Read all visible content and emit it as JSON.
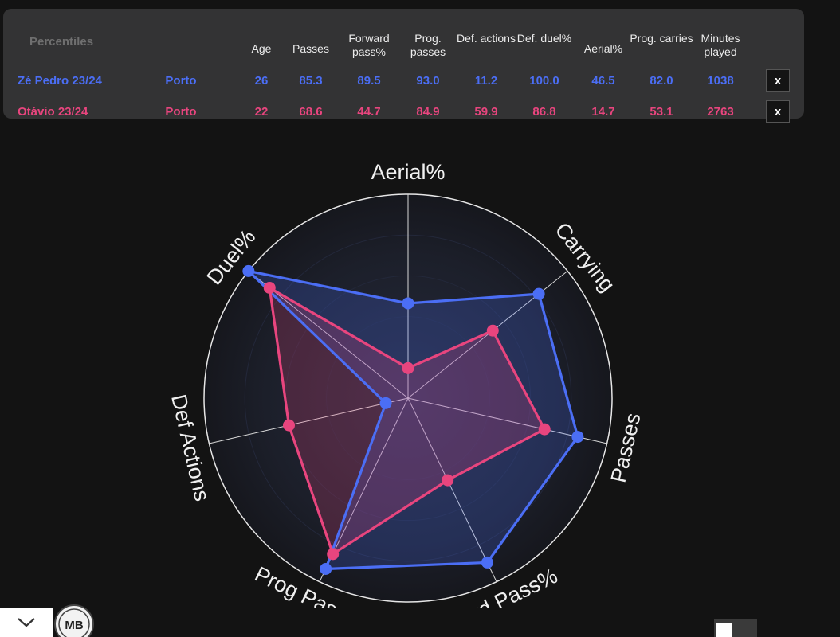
{
  "table": {
    "percentiles_label": "Percentiles",
    "headers": [
      {
        "key": "age",
        "label": "Age"
      },
      {
        "key": "passes",
        "label": "Passes"
      },
      {
        "key": "fwd",
        "label": "Forward pass%"
      },
      {
        "key": "prog",
        "label": "Prog. passes"
      },
      {
        "key": "defact",
        "label": "Def. actions"
      },
      {
        "key": "defduel",
        "label": "Def. duel%"
      },
      {
        "key": "aerial",
        "label": "Aerial%"
      },
      {
        "key": "carries",
        "label": "Prog. carries"
      },
      {
        "key": "minutes",
        "label": "Minutes played"
      }
    ],
    "rows": [
      {
        "name": "Zé Pedro 23/24",
        "team": "Porto",
        "values": [
          "26",
          "85.3",
          "89.5",
          "93.0",
          "11.2",
          "100.0",
          "46.5",
          "82.0",
          "1038"
        ],
        "remove_label": "x"
      },
      {
        "name": "Otávio 23/24",
        "team": "Porto",
        "values": [
          "22",
          "68.6",
          "44.7",
          "84.9",
          "59.9",
          "86.8",
          "14.7",
          "53.1",
          "2763"
        ],
        "remove_label": "x"
      }
    ]
  },
  "logo_text": "MB",
  "colors": {
    "player1": "#4b6ef5",
    "player2": "#e8457e",
    "background": "#131313",
    "panel": "#333334"
  },
  "chart_data": {
    "type": "radar",
    "axes": [
      "Aerial%",
      "Carrying",
      "Passes",
      "Fwd Pass%",
      "Prog Passes",
      "Def Actions",
      "Duel%"
    ],
    "range": [
      0,
      100
    ],
    "series": [
      {
        "name": "Zé Pedro 23/24",
        "color": "#4b6ef5",
        "values": [
          46.5,
          82.0,
          85.3,
          89.5,
          93.0,
          11.2,
          100.0
        ]
      },
      {
        "name": "Otávio 23/24",
        "color": "#e8457e",
        "values": [
          14.7,
          53.1,
          68.6,
          44.7,
          84.9,
          59.9,
          86.8
        ]
      }
    ]
  }
}
